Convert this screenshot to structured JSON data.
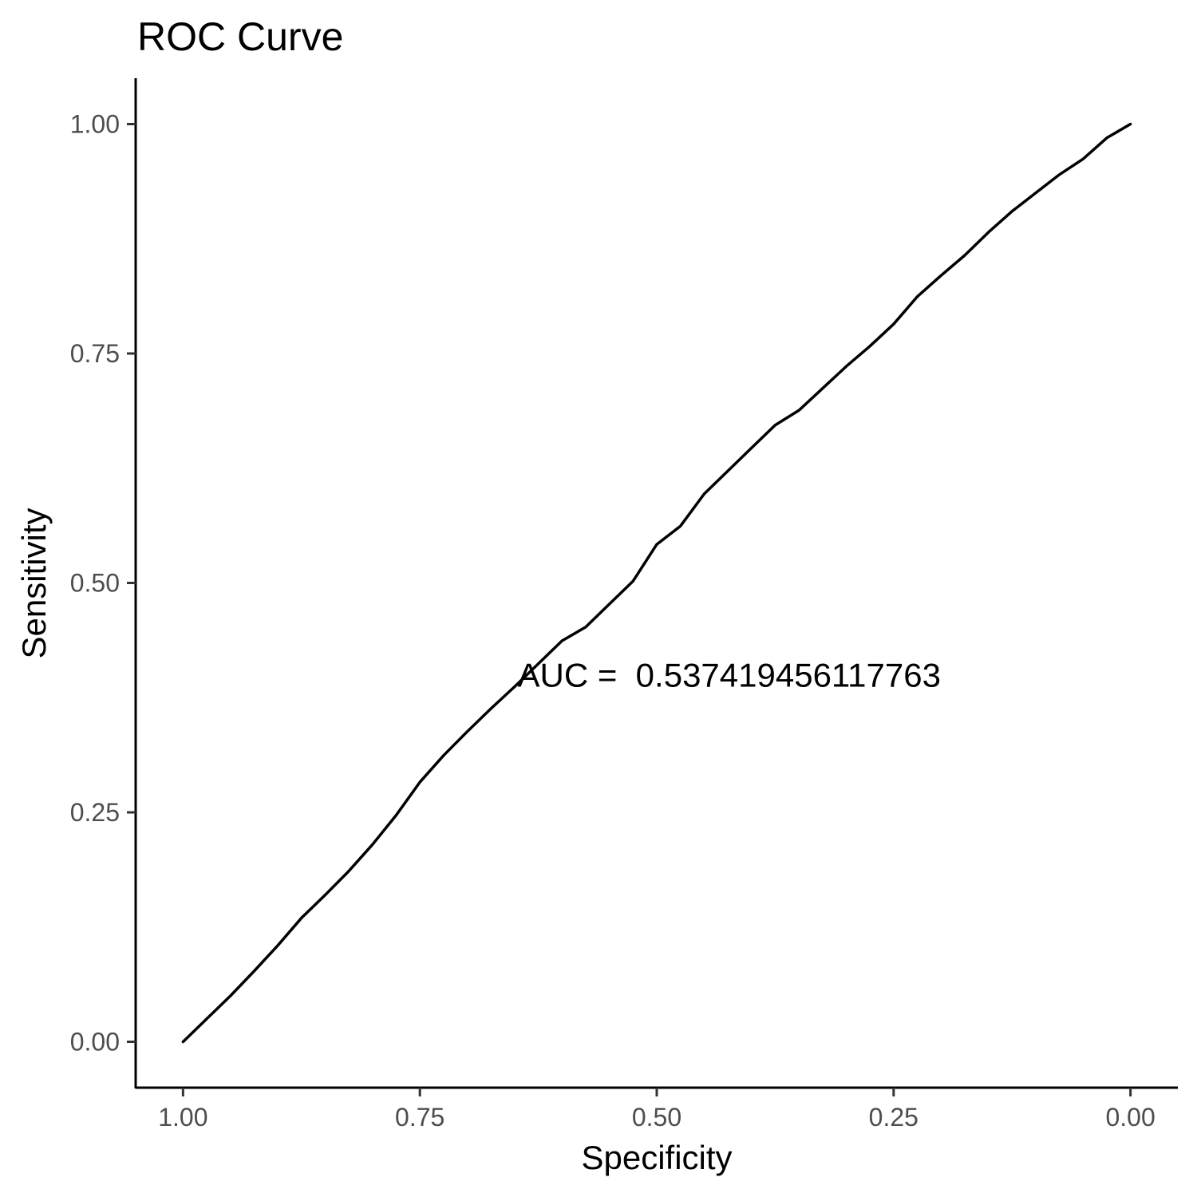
{
  "chart_data": {
    "type": "line",
    "title": "ROC Curve",
    "xlabel": "Specificity",
    "ylabel": "Sensitivity",
    "x_reversed": true,
    "xlim": [
      1.05,
      -0.05
    ],
    "ylim": [
      -0.05,
      1.05
    ],
    "xticks": [
      {
        "value": 1.0,
        "label": "1.00"
      },
      {
        "value": 0.75,
        "label": "0.75"
      },
      {
        "value": 0.5,
        "label": "0.50"
      },
      {
        "value": 0.25,
        "label": "0.25"
      },
      {
        "value": 0.0,
        "label": "0.00"
      }
    ],
    "yticks": [
      {
        "value": 0.0,
        "label": "0.00"
      },
      {
        "value": 0.25,
        "label": "0.25"
      },
      {
        "value": 0.5,
        "label": "0.50"
      },
      {
        "value": 0.75,
        "label": "0.75"
      },
      {
        "value": 1.0,
        "label": "1.00"
      }
    ],
    "grid": false,
    "series": [
      {
        "color": "#000000",
        "x": [
          1.0,
          0.975,
          0.95,
          0.925,
          0.9,
          0.875,
          0.85,
          0.825,
          0.8,
          0.775,
          0.75,
          0.725,
          0.7,
          0.675,
          0.65,
          0.625,
          0.6,
          0.575,
          0.55,
          0.525,
          0.5,
          0.475,
          0.45,
          0.425,
          0.4,
          0.375,
          0.35,
          0.325,
          0.3,
          0.275,
          0.25,
          0.225,
          0.2,
          0.175,
          0.15,
          0.125,
          0.1,
          0.075,
          0.05,
          0.025,
          0.0
        ],
        "y": [
          0.0,
          0.025,
          0.05,
          0.077,
          0.105,
          0.135,
          0.16,
          0.186,
          0.215,
          0.247,
          0.283,
          0.312,
          0.338,
          0.363,
          0.387,
          0.412,
          0.437,
          0.452,
          0.477,
          0.502,
          0.542,
          0.562,
          0.597,
          0.622,
          0.647,
          0.672,
          0.688,
          0.712,
          0.736,
          0.758,
          0.782,
          0.812,
          0.835,
          0.857,
          0.882,
          0.905,
          0.925,
          0.945,
          0.962,
          0.985,
          1.0
        ]
      }
    ],
    "annotations": [
      {
        "text": "AUC =  0.537419456117763",
        "x": 0.647,
        "y": 0.4
      }
    ]
  }
}
